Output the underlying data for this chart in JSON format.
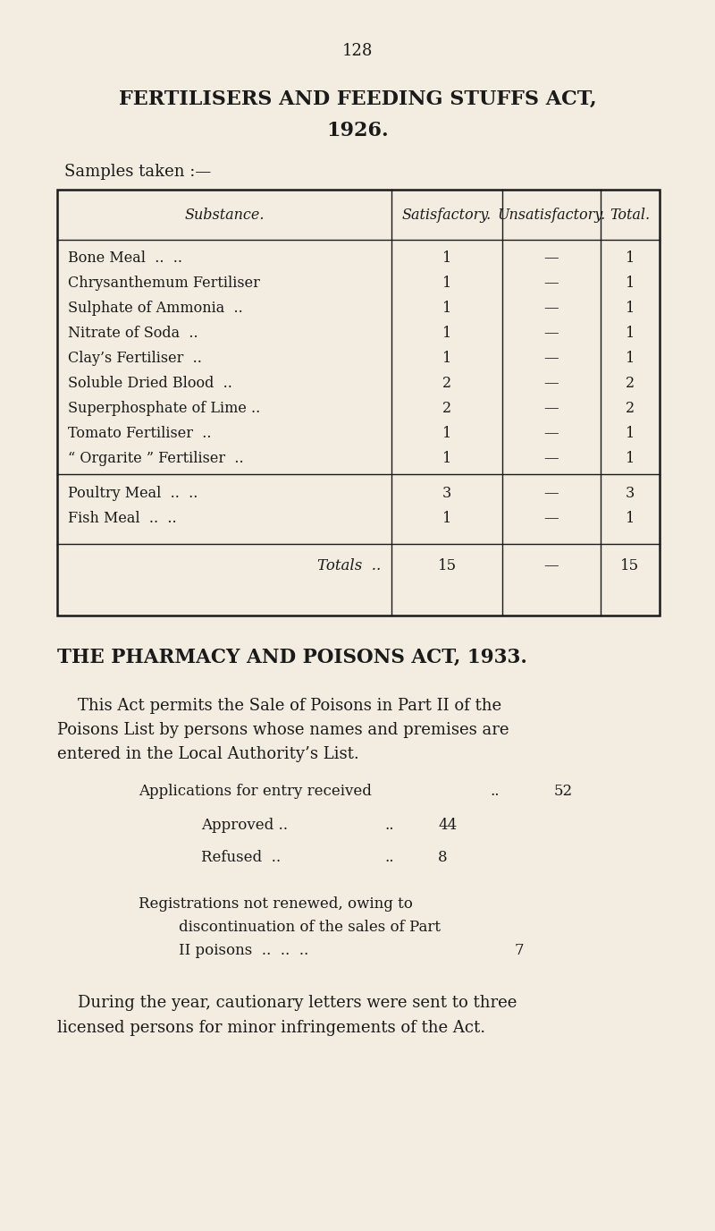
{
  "bg_color": "#f2ede0",
  "text_color": "#1a1a1a",
  "page_number": "128",
  "title_line1": "FERTILISERS AND FEEDING STUFFS ACT,",
  "title_line2": "1926.",
  "samples_label": "Samples taken :—",
  "table_headers": [
    "Substance.",
    "Satisfactory.",
    "Unsatisfactory.",
    "Total."
  ],
  "table_rows_group1": [
    [
      "Bone Meal  ..  ..",
      "1",
      "—",
      "1"
    ],
    [
      "Chrysanthemum Fertiliser",
      "1",
      "—",
      "1"
    ],
    [
      "Sulphate of Ammonia  ..",
      "1",
      "—",
      "1"
    ],
    [
      "Nitrate of Soda  ..",
      "1",
      "—",
      "1"
    ],
    [
      "Clay’s Fertiliser  ..",
      "1",
      "—",
      "1"
    ],
    [
      "Soluble Dried Blood  ..",
      "2",
      "—",
      "2"
    ],
    [
      "Superphosphate of Lime ..",
      "2",
      "—",
      "2"
    ],
    [
      "Tomato Fertiliser  ..",
      "1",
      "—",
      "1"
    ],
    [
      "“ Orgarite ” Fertiliser  ..",
      "1",
      "—",
      "1"
    ]
  ],
  "table_rows_group2": [
    [
      "Poultry Meal  ..  ..",
      "3",
      "—",
      "3"
    ],
    [
      "Fish Meal  ..  ..",
      "1",
      "—",
      "1"
    ]
  ],
  "table_totals_label": "Totals  ..",
  "table_totals_sat": "15",
  "table_totals_unsat": "—",
  "table_totals_total": "15",
  "section2_title": "THE PHARMACY AND POISONS ACT, 1933.",
  "section2_para_lines": [
    "    This Act permits the Sale of Poisons in Part II of the",
    "Poisons List by persons whose names and premises are",
    "entered in the Local Authority’s List."
  ],
  "app_label": "Applications for entry received",
  "app_dots": "..",
  "app_value": "52",
  "approved_label": "Approved ..",
  "approved_dots": "..",
  "approved_value": "44",
  "refused_label": "Refused  ..",
  "refused_dots": "..",
  "refused_value": "8",
  "reg_line1": "Registrations not renewed, owing to",
  "reg_line2": "discontinuation of the sales of Part",
  "reg_line3": "II poisons  ..  ..  ..",
  "reg_value": "7",
  "closing_lines": [
    "    During the year, cautionary letters were sent to three",
    "licensed persons for minor infringements of the Act."
  ]
}
